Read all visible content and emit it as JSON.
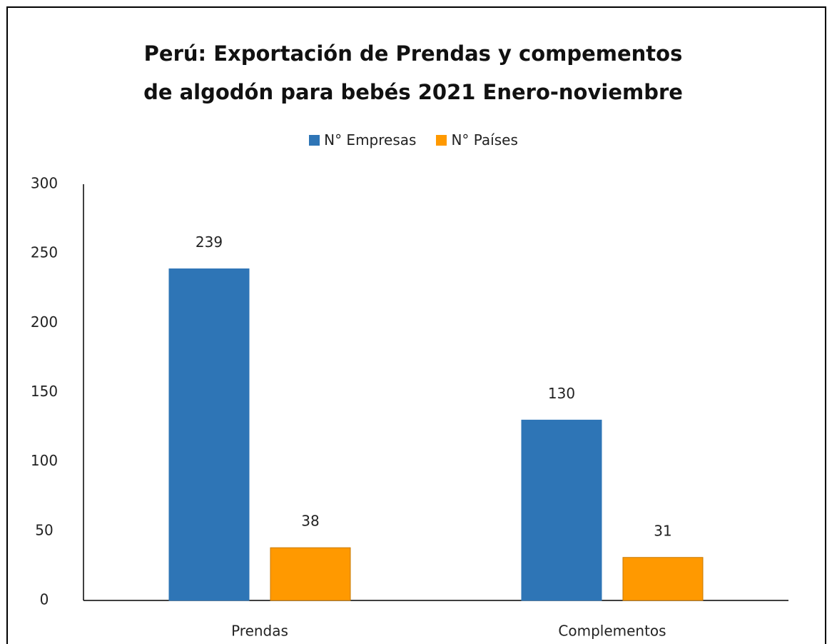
{
  "chart_data": {
    "type": "bar",
    "title": "Perú: Exportación de Prendas y compementos de algodón para bebés 2021 Enero-noviembre",
    "categories": [
      "Prendas",
      "Complementos"
    ],
    "series": [
      {
        "name": "N° Empresas",
        "color": "#2e75b6",
        "values": [
          239,
          130
        ]
      },
      {
        "name": "N° Países",
        "color": "#ff9900",
        "values": [
          38,
          31
        ]
      }
    ],
    "ylim": [
      0,
      300
    ],
    "yticks": [
      0,
      50,
      100,
      150,
      200,
      250,
      300
    ],
    "grid": false,
    "legend": "top"
  }
}
